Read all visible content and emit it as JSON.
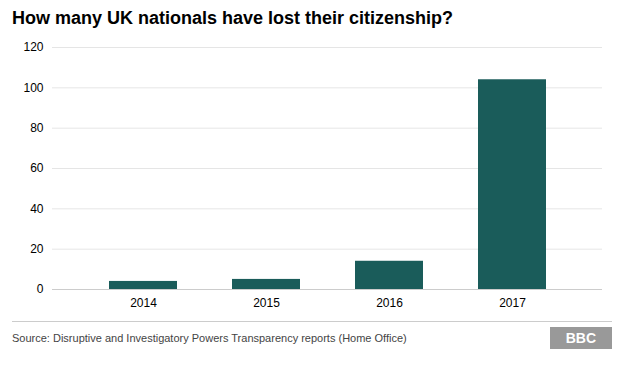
{
  "chart_data": {
    "type": "bar",
    "title": "How many UK nationals have lost their citizenship?",
    "categories": [
      "2014",
      "2015",
      "2016",
      "2017"
    ],
    "values": [
      4,
      5,
      14,
      104
    ],
    "color": "#1a5c5a",
    "ylim": [
      0,
      120
    ],
    "yticks": [
      0,
      20,
      40,
      60,
      80,
      100,
      120
    ],
    "grid": true,
    "source": "Source: Disruptive and Investigatory Powers Transparency reports (Home Office)",
    "annotations": [
      "BBC"
    ]
  }
}
